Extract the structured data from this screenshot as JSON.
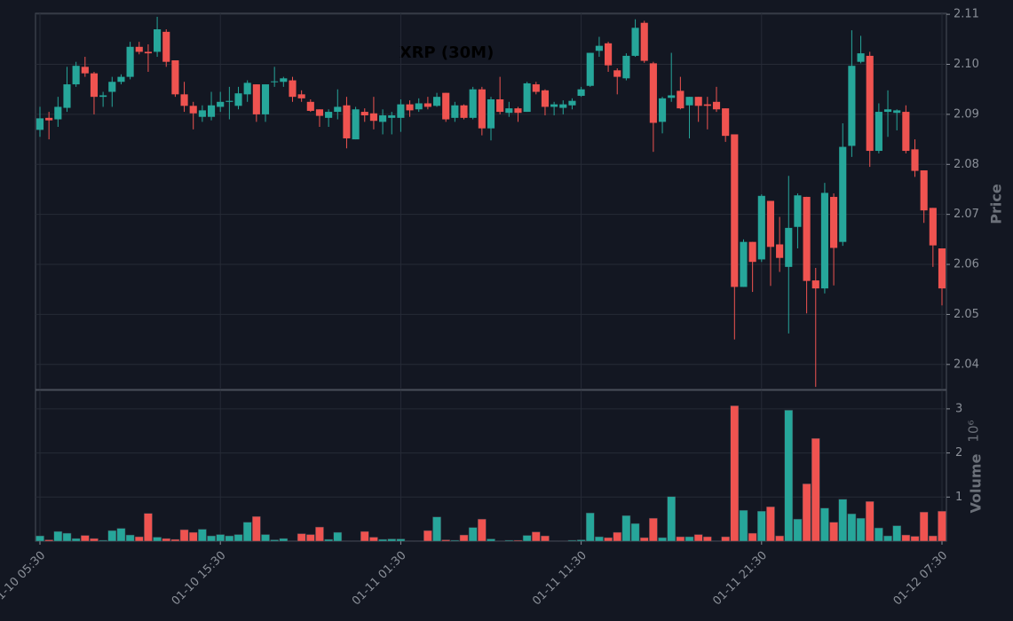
{
  "chart_data": {
    "type": "candlestick",
    "title": "XRP (30M)",
    "categories": [
      "01-10 05:30",
      null,
      null,
      null,
      null,
      null,
      null,
      null,
      null,
      null,
      null,
      null,
      null,
      null,
      null,
      null,
      null,
      null,
      null,
      null,
      "01-10 15:30",
      null,
      null,
      null,
      null,
      null,
      null,
      null,
      null,
      null,
      null,
      null,
      null,
      null,
      null,
      null,
      null,
      null,
      null,
      null,
      "01-11 01:30",
      null,
      null,
      null,
      null,
      null,
      null,
      null,
      null,
      null,
      null,
      null,
      null,
      null,
      null,
      null,
      null,
      null,
      null,
      null,
      "01-11 11:30",
      null,
      null,
      null,
      null,
      null,
      null,
      null,
      null,
      null,
      null,
      null,
      null,
      null,
      null,
      null,
      null,
      null,
      null,
      null,
      "01-11 21:30",
      null,
      null,
      null,
      null,
      null,
      null,
      null,
      null,
      null,
      null,
      null,
      null,
      null,
      null,
      null,
      null,
      null,
      null,
      null,
      "01-12 07:30"
    ],
    "open": [
      2.0869,
      2.0893,
      2.089,
      2.0913,
      2.096,
      2.0995,
      2.0982,
      2.0935,
      2.0945,
      2.0965,
      2.0975,
      2.1035,
      2.1025,
      2.1025,
      2.1065,
      2.1008,
      2.094,
      2.0917,
      2.0895,
      2.0895,
      2.0915,
      2.0925,
      2.0917,
      2.094,
      2.096,
      2.09,
      2.0965,
      2.0965,
      2.0968,
      2.094,
      2.0925,
      2.091,
      2.0893,
      2.0905,
      2.0918,
      2.085,
      2.0905,
      2.0902,
      2.0885,
      2.0893,
      2.0893,
      2.092,
      2.091,
      2.0922,
      2.0917,
      2.0943,
      2.0893,
      2.0918,
      2.0893,
      2.095,
      2.0872,
      2.093,
      2.0903,
      2.0912,
      2.0905,
      2.096,
      2.0948,
      2.0915,
      2.0913,
      2.0918,
      2.0937,
      2.0957,
      2.1027,
      2.1042,
      2.0988,
      2.0972,
      2.1017,
      2.1083,
      2.1002,
      2.0885,
      2.0933,
      2.0947,
      2.0918,
      2.0935,
      2.092,
      2.0925,
      2.0912,
      2.086,
      2.0555,
      2.0645,
      2.061,
      2.0727,
      2.064,
      2.0595,
      2.0675,
      2.0735,
      2.0568,
      2.0552,
      2.0735,
      2.0645,
      2.0837,
      2.1005,
      2.1017,
      2.0827,
      2.0905,
      2.0903,
      2.0905,
      2.083,
      2.0788,
      2.0713,
      2.0632
    ],
    "high": [
      2.0915,
      2.0905,
      2.0935,
      2.0995,
      2.1005,
      2.1015,
      2.0985,
      2.0945,
      2.0975,
      2.098,
      2.1045,
      2.1045,
      2.104,
      2.1095,
      2.107,
      2.1008,
      2.0965,
      2.0925,
      2.0918,
      2.0945,
      2.0945,
      2.0955,
      2.0955,
      2.0968,
      2.096,
      2.096,
      2.0995,
      2.0975,
      2.0975,
      2.0948,
      2.093,
      2.091,
      2.091,
      2.095,
      2.0935,
      2.0915,
      2.0912,
      2.0935,
      2.091,
      2.0905,
      2.093,
      2.0928,
      2.0932,
      2.0935,
      2.0943,
      2.0943,
      2.0925,
      2.092,
      2.0955,
      2.0955,
      2.0935,
      2.0975,
      2.0925,
      2.0915,
      2.0965,
      2.0965,
      2.095,
      2.0925,
      2.0928,
      2.0932,
      2.0955,
      2.1023,
      2.1055,
      2.1045,
      2.0992,
      2.1022,
      2.109,
      2.1087,
      2.1005,
      2.0935,
      2.1023,
      2.0975,
      2.0935,
      2.0935,
      2.0935,
      2.0955,
      2.0912,
      2.086,
      2.065,
      2.0645,
      2.074,
      2.0727,
      2.0695,
      2.0777,
      2.0742,
      2.0735,
      2.0593,
      2.0763,
      2.0742,
      2.0882,
      2.1068,
      2.1057,
      2.1025,
      2.0922,
      2.0948,
      2.091,
      2.0918,
      2.085,
      2.0788,
      2.0713,
      2.0632
    ],
    "low": [
      2.0855,
      2.085,
      2.0875,
      2.0905,
      2.0955,
      2.0975,
      2.09,
      2.0915,
      2.0915,
      2.096,
      2.097,
      2.102,
      2.0985,
      2.1015,
      2.0995,
      2.0935,
      2.0905,
      2.087,
      2.0885,
      2.0888,
      2.0905,
      2.089,
      2.091,
      2.0925,
      2.0885,
      2.0885,
      2.0955,
      2.0955,
      2.0925,
      2.0925,
      2.0905,
      2.0875,
      2.0875,
      2.089,
      2.0832,
      2.085,
      2.0885,
      2.087,
      2.086,
      2.086,
      2.0865,
      2.0895,
      2.0905,
      2.091,
      2.0915,
      2.0885,
      2.0885,
      2.089,
      2.089,
      2.0858,
      2.0848,
      2.09,
      2.0895,
      2.0885,
      2.0905,
      2.094,
      2.0898,
      2.0898,
      2.09,
      2.091,
      2.0935,
      2.0955,
      2.1015,
      2.0985,
      2.094,
      2.0968,
      2.1015,
      2.1003,
      2.0825,
      2.0862,
      2.0925,
      2.091,
      2.0852,
      2.0885,
      2.087,
      2.0905,
      2.0845,
      2.045,
      2.0555,
      2.0545,
      2.0605,
      2.0557,
      2.0585,
      2.0462,
      2.0632,
      2.0502,
      2.0355,
      2.0542,
      2.0558,
      2.0637,
      2.0815,
      2.1002,
      2.0795,
      2.0822,
      2.0855,
      2.0868,
      2.0822,
      2.0775,
      2.0683,
      2.0595,
      2.0518
    ],
    "close": [
      2.0892,
      2.0888,
      2.0915,
      2.096,
      2.0997,
      2.0982,
      2.0935,
      2.0938,
      2.0965,
      2.0975,
      2.1035,
      2.1025,
      2.1022,
      2.107,
      2.1005,
      2.094,
      2.0917,
      2.0902,
      2.0908,
      2.0918,
      2.0925,
      2.0927,
      2.0942,
      2.0963,
      2.09,
      2.096,
      2.0966,
      2.0972,
      2.0935,
      2.0932,
      2.0907,
      2.0897,
      2.0905,
      2.0915,
      2.0852,
      2.091,
      2.0898,
      2.0887,
      2.0898,
      2.0898,
      2.092,
      2.0908,
      2.0922,
      2.0915,
      2.0935,
      2.089,
      2.0918,
      2.0893,
      2.095,
      2.0872,
      2.093,
      2.0905,
      2.0912,
      2.0903,
      2.0962,
      2.0945,
      2.0915,
      2.092,
      2.092,
      2.0927,
      2.095,
      2.1023,
      2.1037,
      2.0998,
      2.0975,
      2.1017,
      2.1073,
      2.1007,
      2.0883,
      2.0932,
      2.0938,
      2.0912,
      2.0935,
      2.0917,
      2.0917,
      2.091,
      2.0857,
      2.0555,
      2.0645,
      2.0605,
      2.0737,
      2.0635,
      2.0613,
      2.0673,
      2.0738,
      2.0567,
      2.0552,
      2.0743,
      2.0633,
      2.0835,
      2.0997,
      2.1022,
      2.0827,
      2.0905,
      2.091,
      2.0908,
      2.0827,
      2.0787,
      2.0708,
      2.0638,
      2.0552
    ],
    "volume": [
      0.12,
      0.03,
      0.22,
      0.18,
      0.06,
      0.13,
      0.06,
      0.02,
      0.24,
      0.29,
      0.14,
      0.1,
      0.63,
      0.09,
      0.06,
      0.04,
      0.26,
      0.2,
      0.27,
      0.12,
      0.15,
      0.12,
      0.15,
      0.43,
      0.56,
      0.15,
      0.03,
      0.06,
      0.01,
      0.17,
      0.15,
      0.32,
      0.04,
      0.2,
      0.01,
      0.01,
      0.22,
      0.09,
      0.04,
      0.05,
      0.05,
      0.01,
      0.01,
      0.24,
      0.55,
      0.03,
      0.02,
      0.14,
      0.31,
      0.5,
      0.05,
      0.01,
      0.02,
      0.02,
      0.13,
      0.21,
      0.12,
      0.01,
      0.01,
      0.02,
      0.03,
      0.64,
      0.1,
      0.08,
      0.2,
      0.58,
      0.4,
      0.08,
      0.52,
      0.08,
      1.01,
      0.1,
      0.1,
      0.15,
      0.1,
      0.01,
      0.1,
      3.07,
      0.7,
      0.18,
      0.68,
      0.78,
      0.12,
      2.97,
      0.5,
      1.3,
      2.33,
      0.75,
      0.43,
      0.95,
      0.62,
      0.52,
      0.9,
      0.3,
      0.12,
      0.35,
      0.14,
      0.11,
      0.66,
      0.12,
      0.68
    ],
    "up_color": "#26a69a",
    "down_color": "#ef5350",
    "y_label": "Price",
    "ylim": [
      2.035,
      2.1102
    ],
    "yticks": [
      2.04,
      2.05,
      2.06,
      2.07,
      2.08,
      2.09,
      {
        "value": 2.1,
        "label": "2.10"
      },
      2.11
    ],
    "volume_label": "Volume",
    "volume_scale_label": "10⁶",
    "volume_lim": [
      0,
      3.42
    ],
    "volume_ticks": [
      1,
      2,
      3
    ],
    "grid": true
  }
}
